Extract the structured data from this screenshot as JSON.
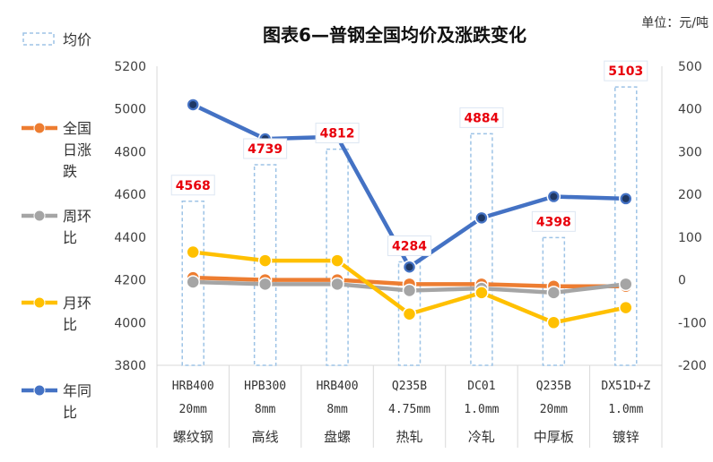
{
  "chart_data": {
    "type": "bar",
    "title": "图表6—普钢全国均价及涨跌变化",
    "unit_label": "单位：元/吨",
    "categories": [
      {
        "spec": "HRB400",
        "size": "20mm",
        "product": "螺纹钢"
      },
      {
        "spec": "HPB300",
        "size": "8mm",
        "product": "高线"
      },
      {
        "spec": "HRB400",
        "size": "8mm",
        "product": "盘螺"
      },
      {
        "spec": "Q235B",
        "size": "4.75mm",
        "product": "热轧"
      },
      {
        "spec": "DC01",
        "size": "1.0mm",
        "product": "冷轧"
      },
      {
        "spec": "Q235B",
        "size": "20mm",
        "product": "中厚板"
      },
      {
        "spec": "DX51D+Z",
        "size": "1.0mm",
        "product": "镀锌"
      }
    ],
    "left_axis": {
      "ylim": [
        3800,
        5200
      ],
      "ticks": [
        3800,
        4000,
        4200,
        4400,
        4600,
        4800,
        5000,
        5200
      ]
    },
    "right_axis": {
      "ylim": [
        -200,
        500
      ],
      "ticks": [
        -200,
        -100,
        0,
        100,
        200,
        300,
        400,
        500
      ]
    },
    "series": [
      {
        "name": "均价",
        "kind": "bar",
        "axis": "left",
        "color": "#9dc3e6",
        "values": [
          4568,
          4739,
          4812,
          4284,
          4884,
          4398,
          5103
        ],
        "label_color": "#e8000b"
      },
      {
        "name": "全国日涨跌",
        "kind": "line",
        "axis": "right",
        "color": "#ed7d31",
        "values": [
          5,
          0,
          0,
          -10,
          -10,
          -15,
          -15
        ]
      },
      {
        "name": "周环比",
        "kind": "line",
        "axis": "right",
        "color": "#a5a5a5",
        "values": [
          -5,
          -10,
          -10,
          -25,
          -20,
          -30,
          -10
        ]
      },
      {
        "name": "月环比",
        "kind": "line",
        "axis": "right",
        "color": "#ffc000",
        "values": [
          65,
          45,
          45,
          -80,
          -30,
          -100,
          -65
        ]
      },
      {
        "name": "年同比",
        "kind": "line",
        "axis": "right",
        "color": "#4472c4",
        "values": [
          410,
          330,
          335,
          30,
          145,
          195,
          190
        ]
      }
    ],
    "legend": [
      {
        "name": "均价",
        "lines": [
          "均价"
        ]
      },
      {
        "name": "全国日涨跌",
        "lines": [
          "全国",
          "日涨",
          "跌"
        ]
      },
      {
        "name": "周环比",
        "lines": [
          "周环",
          "比"
        ]
      },
      {
        "name": "月环比",
        "lines": [
          "月环",
          "比"
        ]
      },
      {
        "name": "年同比",
        "lines": [
          "年同",
          "比"
        ]
      }
    ],
    "grid": false
  }
}
